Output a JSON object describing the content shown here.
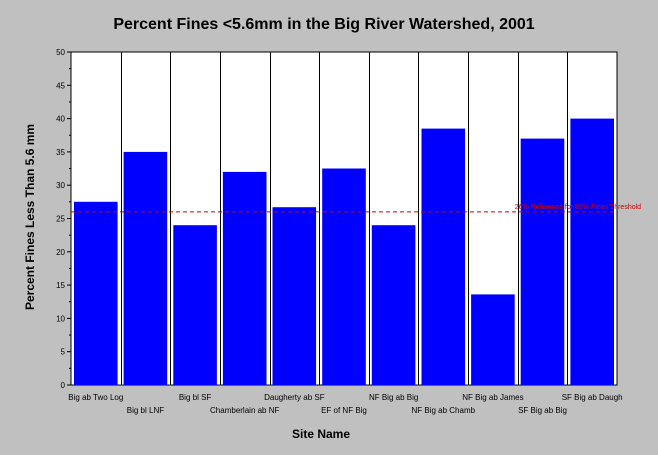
{
  "chart_data": {
    "type": "bar",
    "title": "Percent Fines <5.6mm in the Big River Watershed, 2001",
    "xlabel": "Site Name",
    "ylabel": "Percent Fines Less Than 5.6 mm",
    "ylim": [
      0,
      50
    ],
    "yticks": [
      0,
      5,
      10,
      15,
      20,
      25,
      30,
      35,
      40,
      45,
      50
    ],
    "grid": "vertical lines between categories",
    "categories": [
      "Big ab Two Log",
      "Big bl LNF",
      "Big bl SF",
      "Chamberlain ab NF",
      "Daugherty ab SF",
      "EF of NF Big",
      "NF Big ab Big",
      "NF Big ab Chamb",
      "NF Big ab James",
      "SF Big ab Big",
      "SF Big ab Daugh"
    ],
    "values": [
      27.5,
      35,
      24,
      32,
      26.7,
      32.5,
      24,
      38.5,
      13.6,
      37,
      40
    ],
    "reference_line": {
      "value": 26,
      "label": "26% Reference for 85% Fines Threshold"
    },
    "colors": {
      "bar": "#0000ff",
      "reference": "#cc0000",
      "plot_background": "#ffffff",
      "background": "#c0c0c0"
    }
  }
}
